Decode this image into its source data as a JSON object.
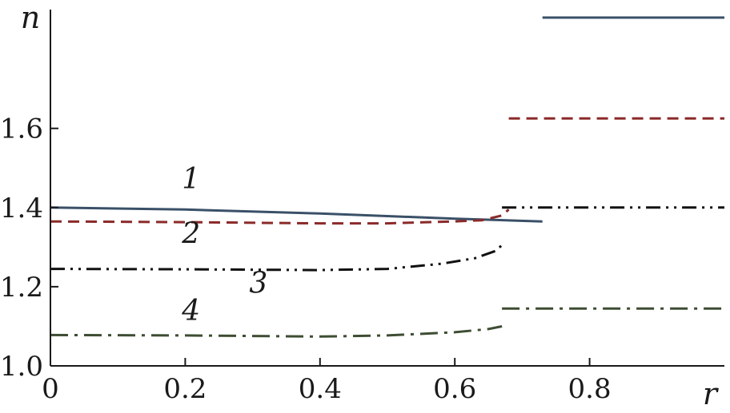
{
  "chart_data": {
    "type": "line",
    "xlabel": "r",
    "ylabel": "n",
    "xlim": [
      0,
      1.0
    ],
    "ylim": [
      1.0,
      1.88
    ],
    "x_ticks": [
      "0",
      "0.2",
      "0.4",
      "0.6",
      "0.8"
    ],
    "y_ticks": [
      "1.0",
      "1.2",
      "1.4",
      "1.6"
    ],
    "x_tick_values": [
      0,
      0.2,
      0.4,
      0.6,
      0.8
    ],
    "y_tick_values": [
      1.0,
      1.2,
      1.4,
      1.6
    ],
    "grid": false,
    "series": [
      {
        "name": "1",
        "color": "#3a5068",
        "dash": "solid",
        "segments": [
          [
            [
              0,
              1.4
            ],
            [
              0.2,
              1.395
            ],
            [
              0.4,
              1.385
            ],
            [
              0.6,
              1.372
            ],
            [
              0.73,
              1.365
            ]
          ],
          [
            [
              0.73,
              1.88
            ],
            [
              1.0,
              1.88
            ]
          ]
        ]
      },
      {
        "name": "2",
        "color": "#8b2a2a",
        "dash": "dashed",
        "segments": [
          [
            [
              0,
              1.365
            ],
            [
              0.2,
              1.363
            ],
            [
              0.4,
              1.36
            ],
            [
              0.5,
              1.36
            ],
            [
              0.6,
              1.365
            ],
            [
              0.64,
              1.368
            ],
            [
              0.67,
              1.38
            ],
            [
              0.68,
              1.395
            ]
          ],
          [
            [
              0.68,
              1.625
            ],
            [
              1.0,
              1.625
            ]
          ]
        ]
      },
      {
        "name": "3",
        "color": "#111111",
        "dash": "dash-dot-dot",
        "segments": [
          [
            [
              0,
              1.245
            ],
            [
              0.2,
              1.244
            ],
            [
              0.4,
              1.242
            ],
            [
              0.5,
              1.245
            ],
            [
              0.58,
              1.258
            ],
            [
              0.63,
              1.272
            ],
            [
              0.66,
              1.29
            ],
            [
              0.67,
              1.305
            ]
          ],
          [
            [
              0.67,
              1.4
            ],
            [
              1.0,
              1.4
            ]
          ]
        ]
      },
      {
        "name": "4",
        "color": "#3e4d33",
        "dash": "dash-dot",
        "segments": [
          [
            [
              0,
              1.078
            ],
            [
              0.2,
              1.077
            ],
            [
              0.4,
              1.074
            ],
            [
              0.5,
              1.077
            ],
            [
              0.6,
              1.085
            ],
            [
              0.65,
              1.093
            ],
            [
              0.67,
              1.1
            ]
          ],
          [
            [
              0.67,
              1.145
            ],
            [
              1.0,
              1.145
            ]
          ]
        ]
      }
    ],
    "curve_labels": [
      {
        "text": "1",
        "x": 0.195,
        "y": 1.448
      },
      {
        "text": "2",
        "x": 0.195,
        "y": 1.31
      },
      {
        "text": "3",
        "x": 0.295,
        "y": 1.185
      },
      {
        "text": "4",
        "x": 0.195,
        "y": 1.115
      }
    ]
  }
}
